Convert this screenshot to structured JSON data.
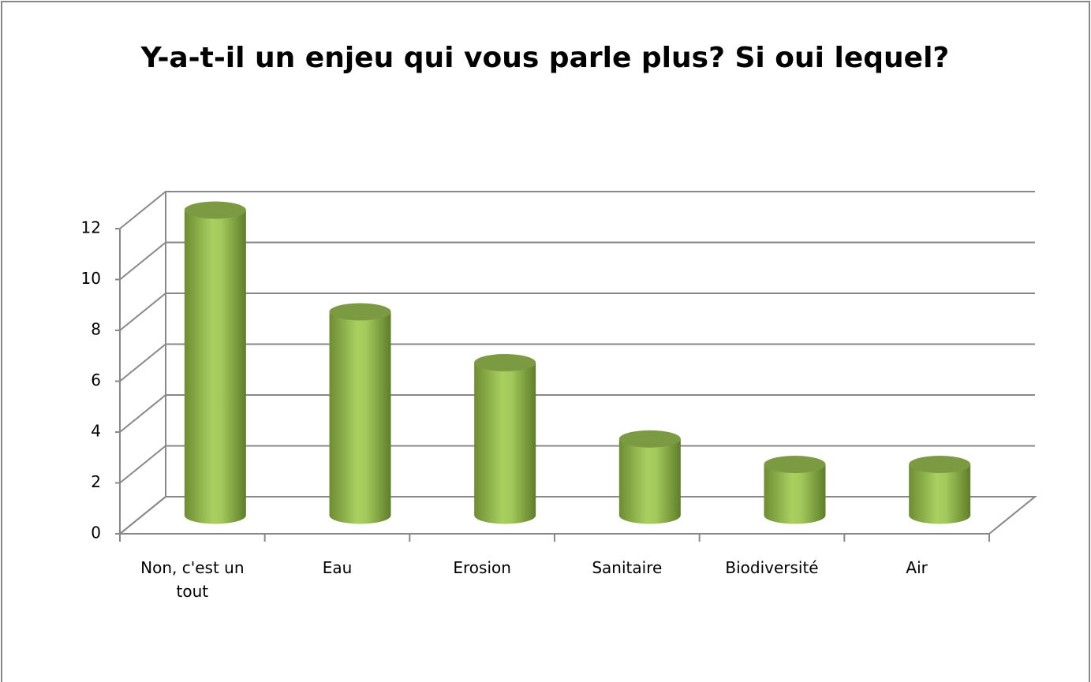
{
  "chart_data": {
    "type": "bar3d",
    "title": "Y-a-t-il un enjeu qui vous parle plus? Si oui lequel?",
    "categories": [
      "Non, c'est un tout",
      "Eau",
      "Erosion",
      "Sanitaire",
      "Biodiversité",
      "Air"
    ],
    "values": [
      12,
      8,
      6,
      3,
      2,
      2
    ],
    "color": "#9bc153",
    "ylim": [
      0,
      12
    ],
    "yticks": [
      0,
      2,
      4,
      6,
      8,
      10,
      12
    ],
    "grid": true
  }
}
